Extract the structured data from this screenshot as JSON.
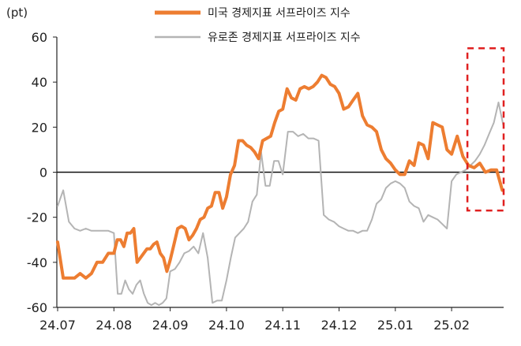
{
  "chart_data": {
    "type": "line",
    "ylabel": "(pt)",
    "ylim": [
      -60,
      60
    ],
    "yticks": [
      60,
      40,
      20,
      0,
      -20,
      -40,
      -60
    ],
    "xlim": [
      "24.07",
      "25.02"
    ],
    "xticks": [
      "24.07",
      "24.08",
      "24.09",
      "24.10",
      "24.11",
      "24.12",
      "25.01",
      "25.02"
    ],
    "grid": false,
    "legend_position": "top",
    "highlight_box": {
      "x_range": [
        "25.02",
        "25.03"
      ],
      "y_range": [
        55,
        -17
      ],
      "color": "#e02020"
    },
    "series": [
      {
        "name": "미국 경제지표 서프라이즈 지수",
        "color": "#ed7d31",
        "points": [
          [
            "24.07",
            -31
          ],
          [
            "24.07",
            -47
          ],
          [
            "24.07",
            -47
          ],
          [
            "24.07",
            -47
          ],
          [
            "24.07",
            -45
          ],
          [
            "24.07",
            -47
          ],
          [
            "24.07",
            -45
          ],
          [
            "24.07",
            -40
          ],
          [
            "24.07",
            -40
          ],
          [
            "24.07",
            -36
          ],
          [
            "24.08",
            -36
          ],
          [
            "24.08",
            -30
          ],
          [
            "24.08",
            -30
          ],
          [
            "24.08",
            -33
          ],
          [
            "24.08",
            -27
          ],
          [
            "24.08",
            -27
          ],
          [
            "24.08",
            -25
          ],
          [
            "24.08",
            -40
          ],
          [
            "24.08",
            -38
          ],
          [
            "24.08",
            -36
          ],
          [
            "24.08",
            -34
          ],
          [
            "24.08",
            -34
          ],
          [
            "24.08",
            -32
          ],
          [
            "24.08",
            -31
          ],
          [
            "24.08",
            -36
          ],
          [
            "24.08",
            -38
          ],
          [
            "24.08",
            -44
          ],
          [
            "24.09",
            -39
          ],
          [
            "24.09",
            -32
          ],
          [
            "24.09",
            -25
          ],
          [
            "24.09",
            -24
          ],
          [
            "24.09",
            -25
          ],
          [
            "24.09",
            -30
          ],
          [
            "24.09",
            -28
          ],
          [
            "24.09",
            -25
          ],
          [
            "24.09",
            -21
          ],
          [
            "24.09",
            -20
          ],
          [
            "24.09",
            -16
          ],
          [
            "24.09",
            -15
          ],
          [
            "24.09",
            -9
          ],
          [
            "24.09",
            -9
          ],
          [
            "24.09",
            -16
          ],
          [
            "24.10",
            -11
          ],
          [
            "24.10",
            -1
          ],
          [
            "24.10",
            3
          ],
          [
            "24.10",
            14
          ],
          [
            "24.10",
            14
          ],
          [
            "24.10",
            12
          ],
          [
            "24.10",
            11
          ],
          [
            "24.10",
            9
          ],
          [
            "24.10",
            6
          ],
          [
            "24.10",
            14
          ],
          [
            "24.10",
            15
          ],
          [
            "24.10",
            16
          ],
          [
            "24.10",
            22
          ],
          [
            "24.10",
            27
          ],
          [
            "24.11",
            28
          ],
          [
            "24.11",
            37
          ],
          [
            "24.11",
            33
          ],
          [
            "24.11",
            32
          ],
          [
            "24.11",
            37
          ],
          [
            "24.11",
            38
          ],
          [
            "24.11",
            37
          ],
          [
            "24.11",
            38
          ],
          [
            "24.11",
            40
          ],
          [
            "24.11",
            43
          ],
          [
            "24.11",
            42
          ],
          [
            "24.11",
            39
          ],
          [
            "24.11",
            38
          ],
          [
            "24.12",
            35
          ],
          [
            "24.12",
            28
          ],
          [
            "24.12",
            29
          ],
          [
            "24.12",
            32
          ],
          [
            "24.12",
            35
          ],
          [
            "24.12",
            25
          ],
          [
            "24.12",
            21
          ],
          [
            "24.12",
            20
          ],
          [
            "24.12",
            18
          ],
          [
            "24.12",
            10
          ],
          [
            "24.12",
            6
          ],
          [
            "24.12",
            4
          ],
          [
            "25.01",
            1
          ],
          [
            "25.01",
            -1
          ],
          [
            "25.01",
            -1
          ],
          [
            "25.01",
            5
          ],
          [
            "25.01",
            3
          ],
          [
            "25.01",
            13
          ],
          [
            "25.01",
            12
          ],
          [
            "25.01",
            6
          ],
          [
            "25.01",
            22
          ],
          [
            "25.01",
            21
          ],
          [
            "25.01",
            20
          ],
          [
            "25.01",
            10
          ],
          [
            "25.02",
            8
          ],
          [
            "25.02",
            16
          ],
          [
            "25.02",
            7
          ],
          [
            "25.02",
            3
          ],
          [
            "25.02",
            2
          ],
          [
            "25.02",
            4
          ],
          [
            "25.02",
            0
          ],
          [
            "25.02",
            1
          ],
          [
            "25.02",
            1
          ],
          [
            "25.02",
            -8
          ]
        ]
      },
      {
        "name": "유로존 경제지표 서프라이즈 지수",
        "color": "#b4b4b4",
        "points": [
          [
            "24.07",
            -15
          ],
          [
            "24.07",
            -8
          ],
          [
            "24.07",
            -22
          ],
          [
            "24.07",
            -25
          ],
          [
            "24.07",
            -26
          ],
          [
            "24.07",
            -25
          ],
          [
            "24.07",
            -26
          ],
          [
            "24.07",
            -26
          ],
          [
            "24.07",
            -26
          ],
          [
            "24.07",
            -26
          ],
          [
            "24.08",
            -27
          ],
          [
            "24.08",
            -54
          ],
          [
            "24.08",
            -54
          ],
          [
            "24.08",
            -48
          ],
          [
            "24.08",
            -52
          ],
          [
            "24.08",
            -54
          ],
          [
            "24.08",
            -50
          ],
          [
            "24.08",
            -48
          ],
          [
            "24.08",
            -54
          ],
          [
            "24.08",
            -58
          ],
          [
            "24.08",
            -59
          ],
          [
            "24.08",
            -58
          ],
          [
            "24.08",
            -59
          ],
          [
            "24.08",
            -58
          ],
          [
            "24.08",
            -56
          ],
          [
            "24.09",
            -44
          ],
          [
            "24.09",
            -43
          ],
          [
            "24.09",
            -40
          ],
          [
            "24.09",
            -36
          ],
          [
            "24.09",
            -35
          ],
          [
            "24.09",
            -33
          ],
          [
            "24.09",
            -36
          ],
          [
            "24.09",
            -27
          ],
          [
            "24.09",
            -38
          ],
          [
            "24.09",
            -58
          ],
          [
            "24.09",
            -57
          ],
          [
            "24.09",
            -57
          ],
          [
            "24.10",
            -48
          ],
          [
            "24.10",
            -38
          ],
          [
            "24.10",
            -29
          ],
          [
            "24.10",
            -27
          ],
          [
            "24.10",
            -25
          ],
          [
            "24.10",
            -22
          ],
          [
            "24.10",
            -13
          ],
          [
            "24.10",
            -10
          ],
          [
            "24.10",
            9
          ],
          [
            "24.10",
            -6
          ],
          [
            "24.10",
            -6
          ],
          [
            "24.10",
            5
          ],
          [
            "24.10",
            5
          ],
          [
            "24.11",
            -1
          ],
          [
            "24.11",
            18
          ],
          [
            "24.11",
            18
          ],
          [
            "24.11",
            16
          ],
          [
            "24.11",
            17
          ],
          [
            "24.11",
            15
          ],
          [
            "24.11",
            15
          ],
          [
            "24.11",
            14
          ],
          [
            "24.11",
            -19
          ],
          [
            "24.11",
            -21
          ],
          [
            "24.11",
            -22
          ],
          [
            "24.12",
            -24
          ],
          [
            "24.12",
            -25
          ],
          [
            "24.12",
            -26
          ],
          [
            "24.12",
            -26
          ],
          [
            "24.12",
            -27
          ],
          [
            "24.12",
            -26
          ],
          [
            "24.12",
            -26
          ],
          [
            "24.12",
            -21
          ],
          [
            "24.12",
            -14
          ],
          [
            "24.12",
            -12
          ],
          [
            "24.12",
            -7
          ],
          [
            "24.12",
            -5
          ],
          [
            "25.01",
            -4
          ],
          [
            "25.01",
            -5
          ],
          [
            "25.01",
            -7
          ],
          [
            "25.01",
            -13
          ],
          [
            "25.01",
            -15
          ],
          [
            "25.01",
            -16
          ],
          [
            "25.01",
            -22
          ],
          [
            "25.01",
            -19
          ],
          [
            "25.01",
            -20
          ],
          [
            "25.01",
            -21
          ],
          [
            "25.01",
            -23
          ],
          [
            "25.01",
            -25
          ],
          [
            "25.02",
            -4
          ],
          [
            "25.02",
            -1
          ],
          [
            "25.02",
            0
          ],
          [
            "25.02",
            1
          ],
          [
            "25.02",
            3
          ],
          [
            "25.02",
            5
          ],
          [
            "25.02",
            8
          ],
          [
            "25.02",
            12
          ],
          [
            "25.02",
            17
          ],
          [
            "25.02",
            22
          ],
          [
            "25.02",
            31
          ],
          [
            "25.02",
            21
          ]
        ]
      }
    ]
  }
}
